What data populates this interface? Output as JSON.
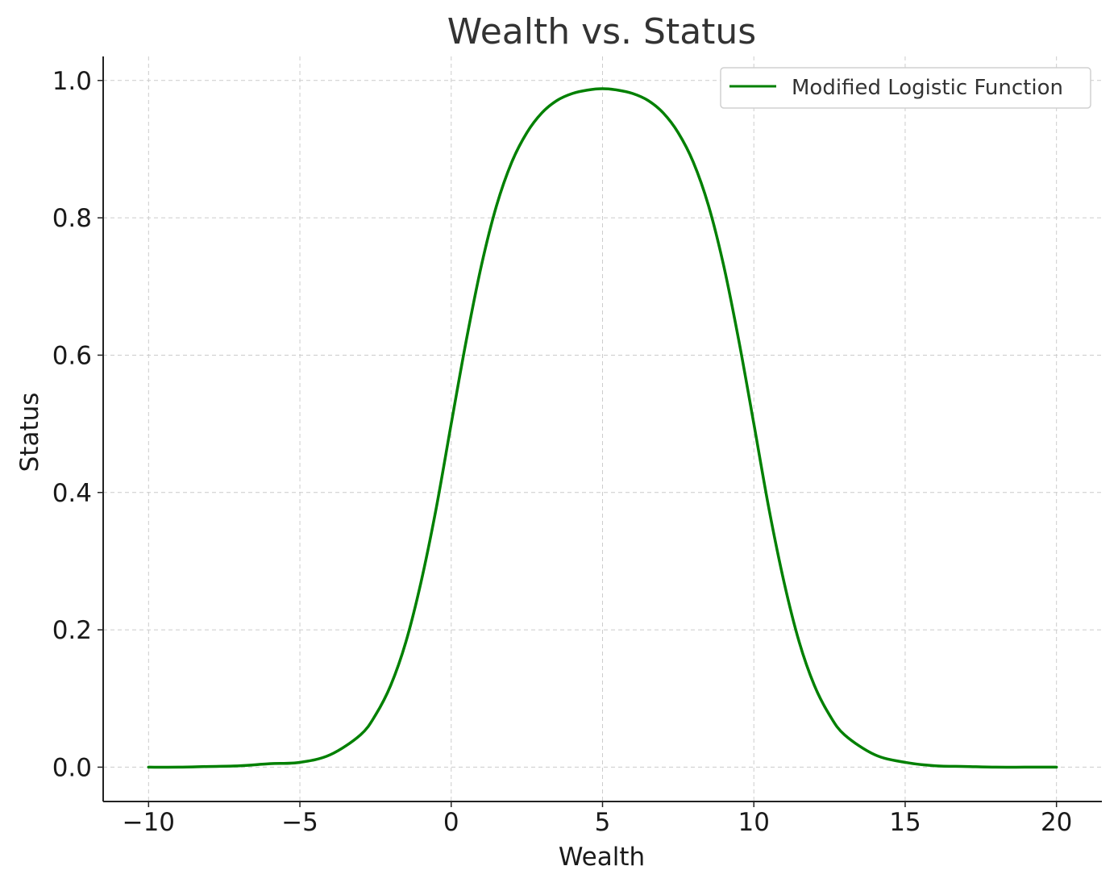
{
  "chart_data": {
    "type": "line",
    "title": "Wealth vs. Status",
    "xlabel": "Wealth",
    "ylabel": "Status",
    "xlim": [
      -11.5,
      21.5
    ],
    "ylim": [
      -0.05,
      1.035
    ],
    "x_ticks": [
      -10,
      -5,
      0,
      5,
      10,
      15,
      20
    ],
    "x_tick_labels": [
      "−10",
      "−5",
      "0",
      "5",
      "10",
      "15",
      "20"
    ],
    "y_ticks": [
      0.0,
      0.2,
      0.4,
      0.6,
      0.8,
      1.0
    ],
    "y_tick_labels": [
      "0.0",
      "0.2",
      "0.4",
      "0.6",
      "0.8",
      "1.0"
    ],
    "grid": true,
    "legend_position": "top-right",
    "series": [
      {
        "name": "Modified Logistic Function",
        "color": "#008000",
        "x": [
          -10,
          -9,
          -8,
          -7,
          -6,
          -5,
          -4,
          -3,
          -2.5,
          -2,
          -1.5,
          -1,
          -0.5,
          0,
          0.5,
          1,
          1.5,
          2,
          2.5,
          3,
          3.5,
          4,
          4.5,
          5,
          5.5,
          6,
          6.5,
          7,
          7.5,
          8,
          8.5,
          9,
          9.5,
          10,
          10.5,
          11,
          11.5,
          12,
          12.5,
          13,
          14,
          15,
          16,
          17,
          18,
          19,
          20
        ],
        "y": [
          0.0,
          0.0,
          0.001,
          0.002,
          0.005,
          0.007,
          0.018,
          0.047,
          0.076,
          0.119,
          0.182,
          0.269,
          0.376,
          0.5,
          0.622,
          0.731,
          0.818,
          0.881,
          0.924,
          0.953,
          0.971,
          0.981,
          0.986,
          0.988,
          0.986,
          0.981,
          0.971,
          0.953,
          0.924,
          0.881,
          0.818,
          0.731,
          0.622,
          0.5,
          0.376,
          0.269,
          0.182,
          0.119,
          0.076,
          0.047,
          0.018,
          0.007,
          0.002,
          0.001,
          0.0,
          0.0,
          0.0
        ]
      }
    ]
  }
}
